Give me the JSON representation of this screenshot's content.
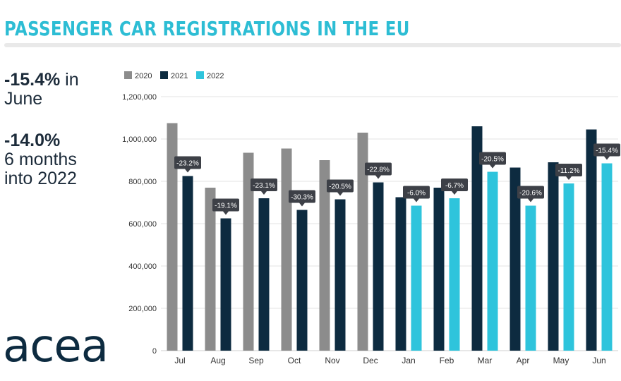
{
  "header": {
    "title": "PASSENGER CAR REGISTRATIONS IN THE EU"
  },
  "highlights": [
    {
      "value": "-15.4%",
      "rest_line1": " in",
      "line2": "June"
    },
    {
      "value": "-14.0%",
      "line2": "6 months",
      "line3": "into 2022"
    }
  ],
  "logo": {
    "text": "acea"
  },
  "colors": {
    "accent": "#2dbdd4",
    "series_2020": "#8c8c8c",
    "series_2021": "#0d2b40",
    "series_2022": "#2ec4dc",
    "label_bg": "#3d4047"
  },
  "chart_data": {
    "type": "bar",
    "title": "PASSENGER CAR REGISTRATIONS IN THE EU",
    "xlabel": "",
    "ylabel": "",
    "ylim": [
      0,
      1200000
    ],
    "yticks": [
      0,
      200000,
      400000,
      600000,
      800000,
      1000000,
      1200000
    ],
    "ytick_labels": [
      "0",
      "200,000",
      "400,000",
      "600,000",
      "800,000",
      "1,000,000",
      "1,200,000"
    ],
    "grid": true,
    "legend_position": "top-left",
    "categories": [
      "Jul",
      "Aug",
      "Sep",
      "Oct",
      "Nov",
      "Dec",
      "Jan",
      "Feb",
      "Mar",
      "Apr",
      "May",
      "Jun"
    ],
    "series": [
      {
        "name": "2020",
        "values": [
          1075000,
          770000,
          935000,
          955000,
          900000,
          1030000,
          null,
          null,
          null,
          null,
          null,
          null
        ]
      },
      {
        "name": "2021",
        "values": [
          825000,
          625000,
          720000,
          665000,
          715000,
          795000,
          725000,
          770000,
          1060000,
          865000,
          890000,
          1045000
        ]
      },
      {
        "name": "2022",
        "values": [
          null,
          null,
          null,
          null,
          null,
          null,
          685000,
          720000,
          845000,
          685000,
          790000,
          885000
        ]
      }
    ],
    "annotations": [
      {
        "category": "Jul",
        "series": "2021",
        "text": "-23.2%"
      },
      {
        "category": "Aug",
        "series": "2021",
        "text": "-19.1%"
      },
      {
        "category": "Sep",
        "series": "2021",
        "text": "-23.1%"
      },
      {
        "category": "Oct",
        "series": "2021",
        "text": "-30.3%"
      },
      {
        "category": "Nov",
        "series": "2021",
        "text": "-20.5%"
      },
      {
        "category": "Dec",
        "series": "2021",
        "text": "-22.8%"
      },
      {
        "category": "Jan",
        "series": "2022",
        "text": "-6.0%"
      },
      {
        "category": "Feb",
        "series": "2022",
        "text": "-6.7%"
      },
      {
        "category": "Mar",
        "series": "2022",
        "text": "-20.5%"
      },
      {
        "category": "Apr",
        "series": "2022",
        "text": "-20.6%"
      },
      {
        "category": "May",
        "series": "2022",
        "text": "-11.2%"
      },
      {
        "category": "Jun",
        "series": "2022",
        "text": "-15.4%"
      }
    ]
  }
}
